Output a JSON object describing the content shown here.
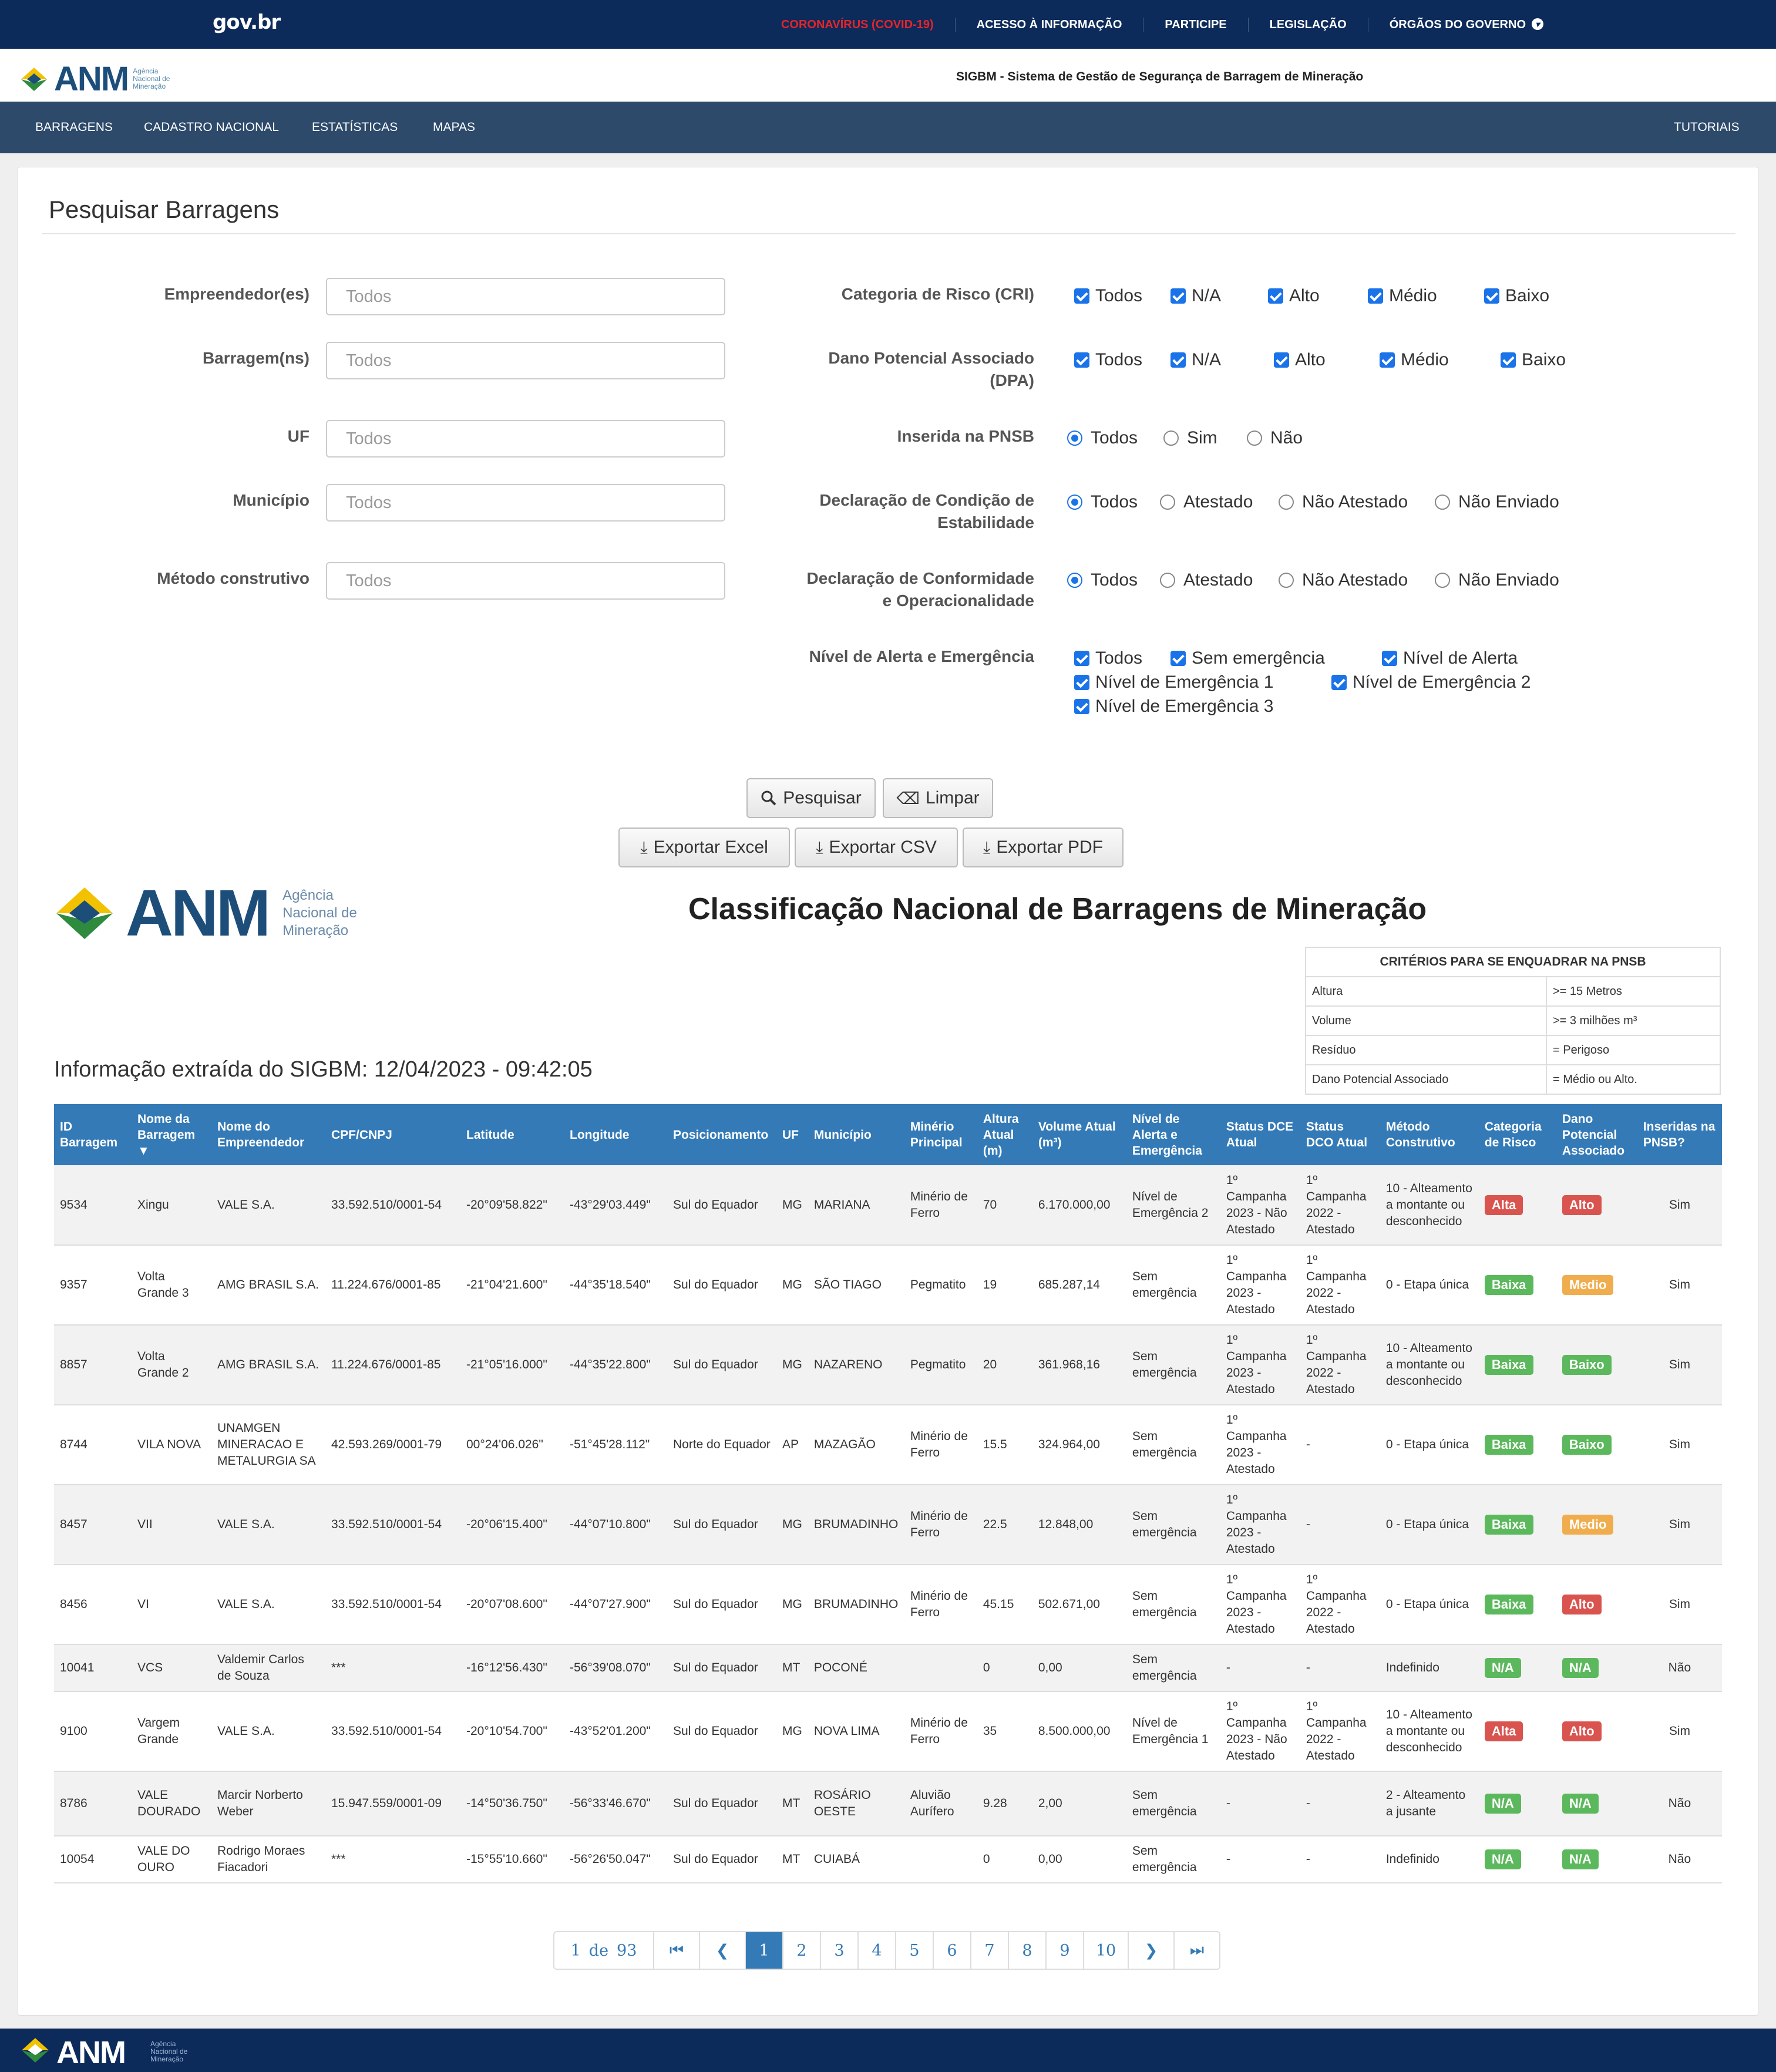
{
  "gov": {
    "logo": "gov.br",
    "links": [
      "CORONAVÍRUS (COVID-19)",
      "ACESSO À INFORMAÇÃO",
      "PARTICIPE",
      "LEGISLAÇÃO",
      "ÓRGÃOS DO GOVERNO"
    ]
  },
  "brand": {
    "logo": "ANM",
    "sub": [
      "Agência",
      "Nacional de",
      "Mineração"
    ],
    "system_title": "SIGBM - Sistema de Gestão de Segurança de Barragem de Mineração"
  },
  "nav": {
    "items": [
      "BARRAGENS",
      "CADASTRO NACIONAL",
      "ESTATÍSTICAS",
      "MAPAS"
    ],
    "right": "TUTORIAIS"
  },
  "search": {
    "title": "Pesquisar Barragens",
    "fields": [
      {
        "label": "Empreendedor(es)",
        "placeholder": "Todos"
      },
      {
        "label": "Barragem(ns)",
        "placeholder": "Todos"
      },
      {
        "label": "UF",
        "placeholder": "Todos"
      },
      {
        "label": "Município",
        "placeholder": "Todos"
      },
      {
        "label": "Método construtivo",
        "placeholder": "Todos"
      }
    ],
    "cri": {
      "label": "Categoria de Risco (CRI)",
      "options": [
        "Todos",
        "N/A",
        "Alto",
        "Médio",
        "Baixo"
      ]
    },
    "dpa": {
      "label_1": "Dano Potencial Associado",
      "label_2": "(DPA)",
      "options": [
        "Todos",
        "N/A",
        "Alto",
        "Médio",
        "Baixo"
      ]
    },
    "pnsb": {
      "label": "Inserida na PNSB",
      "options": [
        "Todos",
        "Sim",
        "Não"
      ],
      "selected": "Todos"
    },
    "dce": {
      "label_1": "Declaração de Condição de",
      "label_2": "Estabilidade",
      "options": [
        "Todos",
        "Atestado",
        "Não Atestado",
        "Não Enviado"
      ],
      "selected": "Todos"
    },
    "dco": {
      "label_1": "Declaração de Conformidade",
      "label_2": "e Operacionalidade",
      "options": [
        "Todos",
        "Atestado",
        "Não Atestado",
        "Não Enviado"
      ],
      "selected": "Todos"
    },
    "alerta": {
      "label": "Nível de Alerta e Emergência",
      "options": [
        "Todos",
        "Sem emergência",
        "Nível de Alerta",
        "Nível de Emergência 1",
        "Nível de Emergência 2",
        "Nível de Emergência 3"
      ]
    },
    "buttons": {
      "search": "Pesquisar",
      "clear": "Limpar",
      "excel": "Exportar Excel",
      "csv": "Exportar CSV",
      "pdf": "Exportar PDF"
    }
  },
  "report": {
    "logo": "ANM",
    "sub": [
      "Agência",
      "Nacional de",
      "Mineração"
    ],
    "title": "Classificação Nacional de Barragens de Mineração",
    "extracted": "Informação extraída do SIGBM: 12/04/2023 - 09:42:05",
    "criteria": {
      "title": "CRITÉRIOS PARA SE ENQUADRAR NA PNSB",
      "rows": [
        [
          "Altura",
          ">= 15 Metros"
        ],
        [
          "Volume",
          ">= 3 milhões m³"
        ],
        [
          "Resíduo",
          "= Perigoso"
        ],
        [
          "Dano Potencial Associado",
          "= Médio ou Alto."
        ]
      ]
    }
  },
  "table": {
    "headers": [
      "ID Barragem",
      "Nome da Barragem ▼",
      "Nome do Empreendedor",
      "CPF/CNPJ",
      "Latitude",
      "Longitude",
      "Posicionamento",
      "UF",
      "Município",
      "Minério Principal",
      "Altura Atual (m)",
      "Volume Atual (m³)",
      "Nível de Alerta e Emergência",
      "Status DCE Atual",
      "Status DCO Atual",
      "Método Construtivo",
      "Categoria de Risco",
      "Dano Potencial Associado",
      "Inseridas na PNSB?"
    ],
    "rows": [
      {
        "id": "9534",
        "nome": "Xingu",
        "emp": "VALE S.A.",
        "cnpj": "33.592.510/0001-54",
        "lat": "-20°09'58.822\"",
        "lon": "-43°29'03.449\"",
        "pos": "Sul do Equador",
        "uf": "MG",
        "mun": "MARIANA",
        "min": "Minério de Ferro",
        "alt": "70",
        "vol": "6.170.000,00",
        "nivel": "Nível de Emergência 2",
        "dce": "1º Campanha 2023 - Não Atestado",
        "dco": "1º Campanha 2022 - Atestado",
        "met": "10 - Alteamento a montante ou desconhecido",
        "cri": "Alta",
        "dpa": "Alto",
        "pnsb": "Sim"
      },
      {
        "id": "9357",
        "nome": "Volta Grande 3",
        "emp": "AMG BRASIL S.A.",
        "cnpj": "11.224.676/0001-85",
        "lat": "-21°04'21.600\"",
        "lon": "-44°35'18.540\"",
        "pos": "Sul do Equador",
        "uf": "MG",
        "mun": "SÃO TIAGO",
        "min": "Pegmatito",
        "alt": "19",
        "vol": "685.287,14",
        "nivel": "Sem emergência",
        "dce": "1º Campanha 2023 - Atestado",
        "dco": "1º Campanha 2022 - Atestado",
        "met": "0 - Etapa única",
        "cri": "Baixa",
        "dpa": "Medio",
        "pnsb": "Sim"
      },
      {
        "id": "8857",
        "nome": "Volta Grande 2",
        "emp": "AMG BRASIL S.A.",
        "cnpj": "11.224.676/0001-85",
        "lat": "-21°05'16.000\"",
        "lon": "-44°35'22.800\"",
        "pos": "Sul do Equador",
        "uf": "MG",
        "mun": "NAZARENO",
        "min": "Pegmatito",
        "alt": "20",
        "vol": "361.968,16",
        "nivel": "Sem emergência",
        "dce": "1º Campanha 2023 - Atestado",
        "dco": "1º Campanha 2022 - Atestado",
        "met": "10 - Alteamento a montante ou desconhecido",
        "cri": "Baixa",
        "dpa": "Baixo",
        "pnsb": "Sim"
      },
      {
        "id": "8744",
        "nome": "VILA NOVA",
        "emp": "UNAMGEN MINERACAO E METALURGIA SA",
        "cnpj": "42.593.269/0001-79",
        "lat": "00°24'06.026\"",
        "lon": "-51°45'28.112\"",
        "pos": "Norte do Equador",
        "uf": "AP",
        "mun": "MAZAGÃO",
        "min": "Minério de Ferro",
        "alt": "15.5",
        "vol": "324.964,00",
        "nivel": "Sem emergência",
        "dce": "1º Campanha 2023 - Atestado",
        "dco": "-",
        "met": "0 - Etapa única",
        "cri": "Baixa",
        "dpa": "Baixo",
        "pnsb": "Sim"
      },
      {
        "id": "8457",
        "nome": "VII",
        "emp": "VALE S.A.",
        "cnpj": "33.592.510/0001-54",
        "lat": "-20°06'15.400\"",
        "lon": "-44°07'10.800\"",
        "pos": "Sul do Equador",
        "uf": "MG",
        "mun": "BRUMADINHO",
        "min": "Minério de Ferro",
        "alt": "22.5",
        "vol": "12.848,00",
        "nivel": "Sem emergência",
        "dce": "1º Campanha 2023 - Atestado",
        "dco": "-",
        "met": "0 - Etapa única",
        "cri": "Baixa",
        "dpa": "Medio",
        "pnsb": "Sim"
      },
      {
        "id": "8456",
        "nome": "VI",
        "emp": "VALE S.A.",
        "cnpj": "33.592.510/0001-54",
        "lat": "-20°07'08.600\"",
        "lon": "-44°07'27.900\"",
        "pos": "Sul do Equador",
        "uf": "MG",
        "mun": "BRUMADINHO",
        "min": "Minério de Ferro",
        "alt": "45.15",
        "vol": "502.671,00",
        "nivel": "Sem emergência",
        "dce": "1º Campanha 2023 - Atestado",
        "dco": "1º Campanha 2022 - Atestado",
        "met": "0 - Etapa única",
        "cri": "Baixa",
        "dpa": "Alto",
        "pnsb": "Sim"
      },
      {
        "id": "10041",
        "nome": "VCS",
        "emp": "Valdemir Carlos de Souza",
        "cnpj": "***",
        "lat": "-16°12'56.430\"",
        "lon": "-56°39'08.070\"",
        "pos": "Sul do Equador",
        "uf": "MT",
        "mun": "POCONÉ",
        "min": "",
        "alt": "0",
        "vol": "0,00",
        "nivel": "Sem emergência",
        "dce": "-",
        "dco": "-",
        "met": "Indefinido",
        "cri": "N/A",
        "dpa": "N/A",
        "pnsb": "Não"
      },
      {
        "id": "9100",
        "nome": "Vargem Grande",
        "emp": "VALE S.A.",
        "cnpj": "33.592.510/0001-54",
        "lat": "-20°10'54.700\"",
        "lon": "-43°52'01.200\"",
        "pos": "Sul do Equador",
        "uf": "MG",
        "mun": "NOVA LIMA",
        "min": "Minério de Ferro",
        "alt": "35",
        "vol": "8.500.000,00",
        "nivel": "Nível de Emergência 1",
        "dce": "1º Campanha 2023 - Não Atestado",
        "dco": "1º Campanha 2022 - Atestado",
        "met": "10 - Alteamento a montante ou desconhecido",
        "cri": "Alta",
        "dpa": "Alto",
        "pnsb": "Sim"
      },
      {
        "id": "8786",
        "nome": "VALE DOURADO",
        "emp": "Marcir Norberto Weber",
        "cnpj": "15.947.559/0001-09",
        "lat": "-14°50'36.750\"",
        "lon": "-56°33'46.670\"",
        "pos": "Sul do Equador",
        "uf": "MT",
        "mun": "ROSÁRIO OESTE",
        "min": "Aluvião Aurífero",
        "alt": "9.28",
        "vol": "2,00",
        "nivel": "Sem emergência",
        "dce": "-",
        "dco": "-",
        "met": "2 - Alteamento a jusante",
        "cri": "N/A",
        "dpa": "N/A",
        "pnsb": "Não"
      },
      {
        "id": "10054",
        "nome": "VALE DO OURO",
        "emp": "Rodrigo Moraes Fiacadori",
        "cnpj": "***",
        "lat": "-15°55'10.660\"",
        "lon": "-56°26'50.047\"",
        "pos": "Sul do Equador",
        "uf": "MT",
        "mun": "CUIABÁ",
        "min": "",
        "alt": "0",
        "vol": "0,00",
        "nivel": "Sem emergência",
        "dce": "-",
        "dco": "-",
        "met": "Indefinido",
        "cri": "N/A",
        "dpa": "N/A",
        "pnsb": "Não"
      }
    ]
  },
  "pagination": {
    "current": "1",
    "of": "de",
    "total": "93",
    "pages": [
      "1",
      "2",
      "3",
      "4",
      "5",
      "6",
      "7",
      "8",
      "9",
      "10"
    ]
  },
  "colors": {
    "gov_bar": "#0c2a5a",
    "nav": "#2d4a6b",
    "table_header": "#337ab7",
    "badge_red": "#d9534f",
    "badge_green": "#5cb85c",
    "badge_orange": "#f0ad4e",
    "checkbox": "#1a73e8"
  },
  "footer": {
    "logo": "ANM",
    "sub": [
      "Agência",
      "Nacional de",
      "Mineração"
    ]
  }
}
